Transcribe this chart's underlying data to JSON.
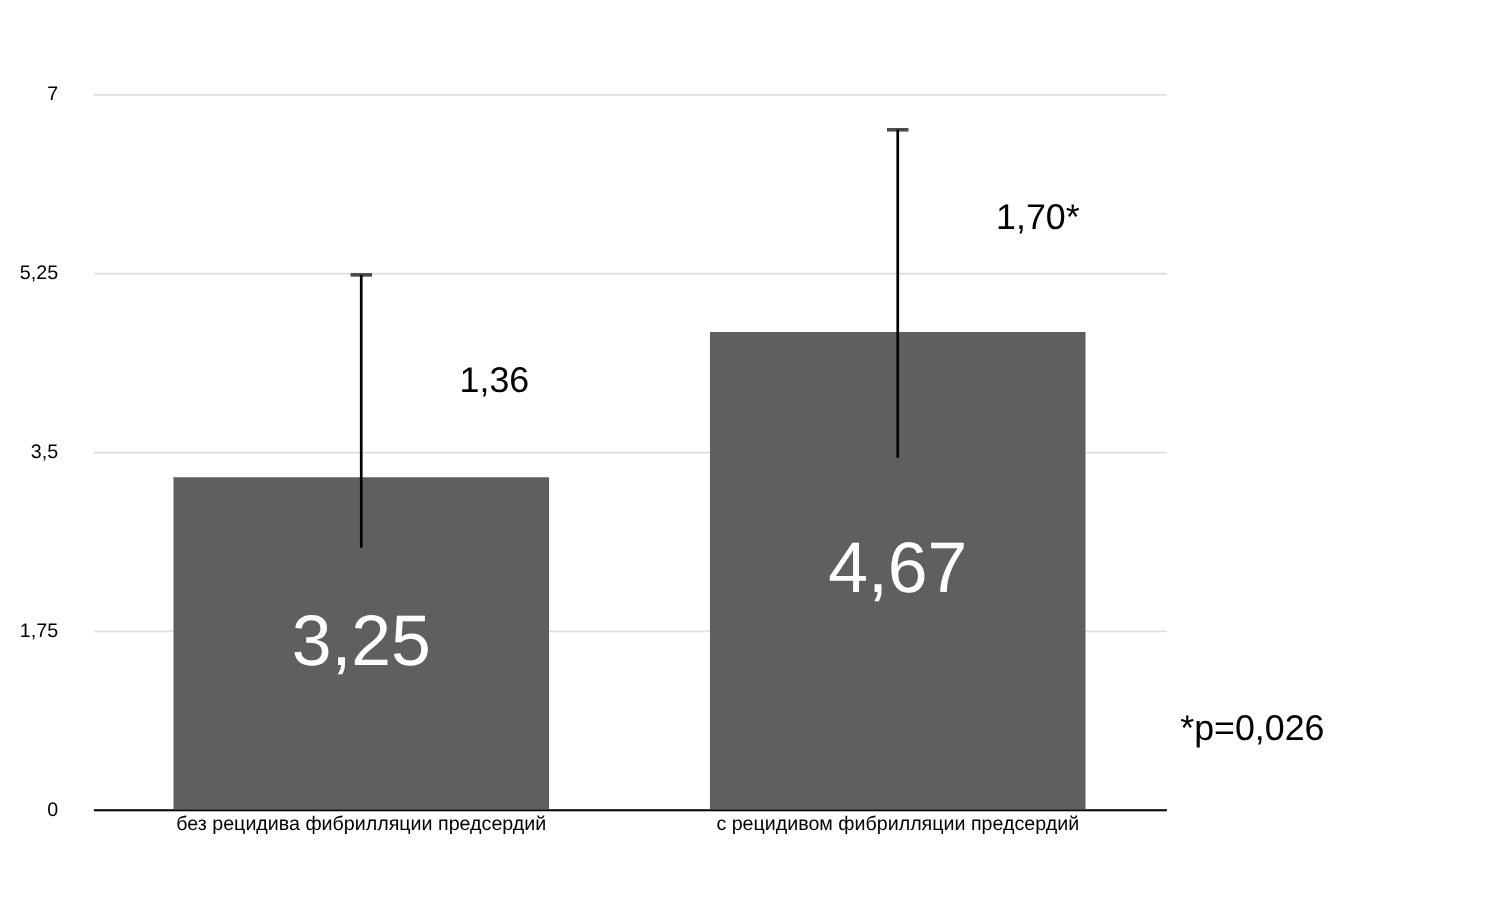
{
  "chart_data": {
    "type": "bar",
    "categories": [
      "без рецидива фибрилляции предсердий",
      "с рецидивом фибрилляции предсердий"
    ],
    "values": [
      3.25,
      4.67
    ],
    "value_labels": [
      "3,25",
      "4,67"
    ],
    "errors": [
      [
        2.56,
        5.23
      ],
      [
        3.44,
        6.65
      ]
    ],
    "color": "#5f5f5f",
    "ylim": [
      0,
      7
    ],
    "yticks": [
      0,
      {
        "value": 1.75,
        "label": "1,75"
      },
      {
        "value": 3.5,
        "label": "3,5"
      },
      {
        "value": 5.25,
        "label": "5,25"
      },
      7
    ],
    "grid": "y",
    "annotations": [
      {
        "text": "1,36",
        "x": "без рецидива фибрилляции предсердий",
        "y": 4.19
      },
      {
        "text": "1,70*",
        "x": "с рецидивом фибрилляции предсердий",
        "y": 5.78
      },
      "*p=0,026"
    ]
  }
}
